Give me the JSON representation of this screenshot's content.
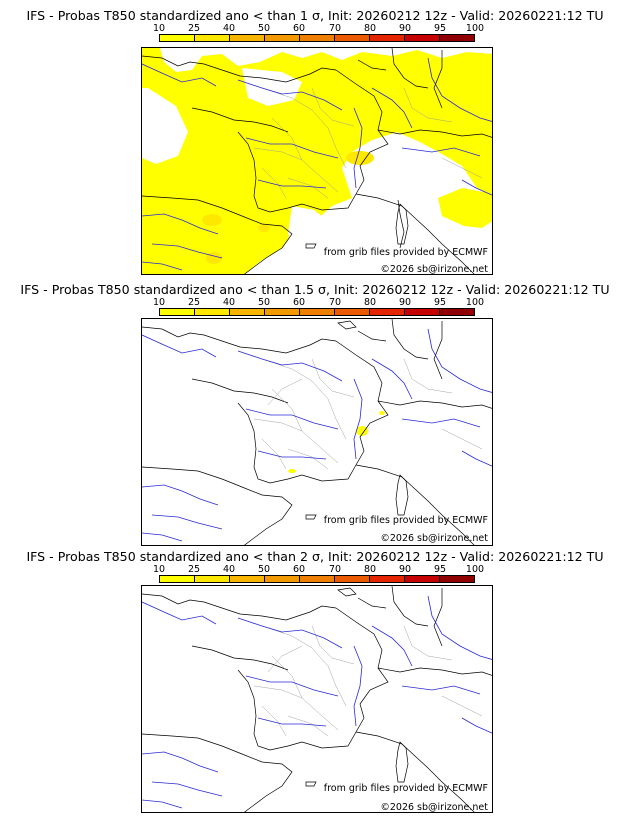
{
  "colorbar": {
    "ticks": [
      "10",
      "25",
      "40",
      "50",
      "60",
      "70",
      "80",
      "90",
      "95",
      "100"
    ],
    "colors": [
      "#ffff00",
      "#ffe800",
      "#f7b500",
      "#f29a00",
      "#ee7f00",
      "#ec5a00",
      "#e52400",
      "#c70000",
      "#900000",
      "#5a0000"
    ]
  },
  "panels": [
    {
      "title": "IFS - Probas T850  standardized ano < than 1 σ, Init: 20260212 12z - Valid: 20260221:12 TU",
      "credit_source": "from grib files provided by ECMWF",
      "credit_copyright": "©2026 sb@irizone.net"
    },
    {
      "title": "IFS - Probas T850  standardized ano < than 1.5 σ, Init: 20260212 12z - Valid: 20260221:12 TU",
      "credit_source": "from grib files provided by ECMWF",
      "credit_copyright": "©2026 sb@irizone.net"
    },
    {
      "title": "IFS - Probas T850  standardized ano < than 2 σ, Init: 20260212 12z - Valid: 20260221:12 TU",
      "credit_source": "from grib files provided by ECMWF",
      "credit_copyright": "©2026 sb@irizone.net"
    }
  ]
}
